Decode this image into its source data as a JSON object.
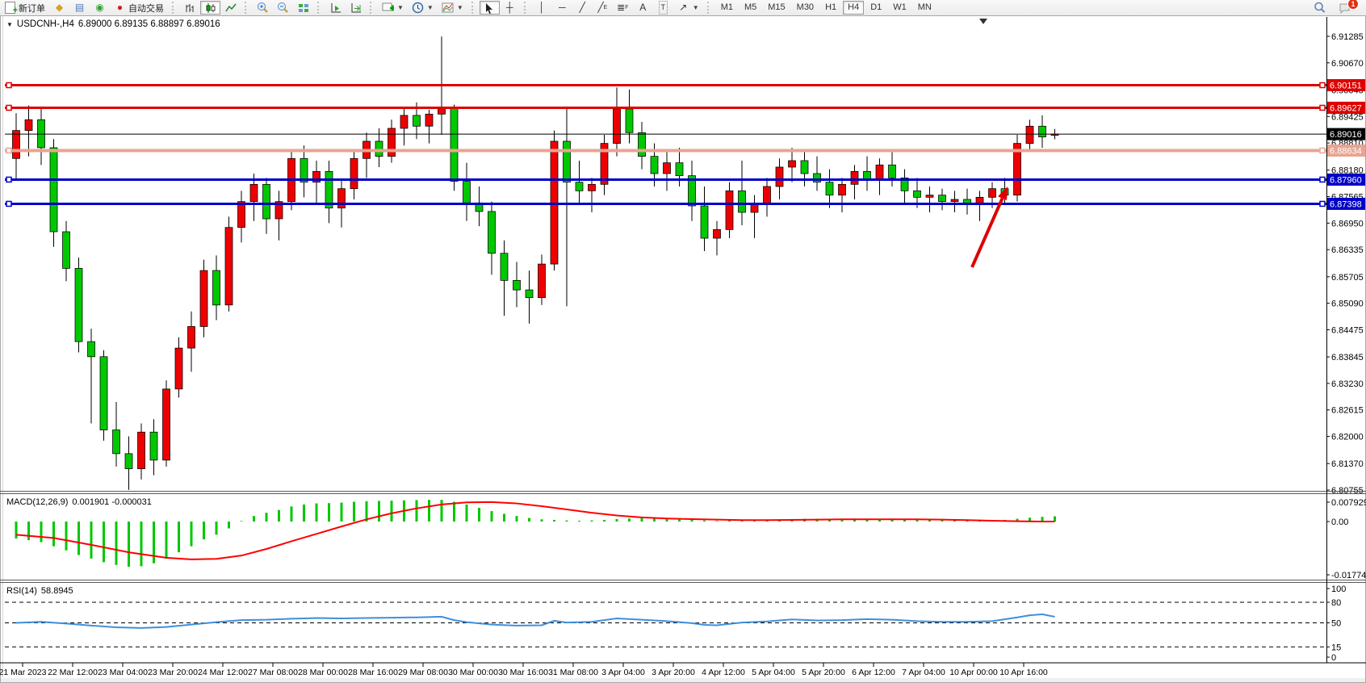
{
  "toolbar": {
    "new_order_label": "新订单",
    "autotrade_label": "自动交易",
    "timeframes": [
      "M1",
      "M5",
      "M15",
      "M30",
      "H1",
      "H4",
      "D1",
      "W1",
      "MN"
    ],
    "active_timeframe": "H4",
    "notification_count": "1"
  },
  "chart": {
    "symbol_period": "USDCNH-,H4",
    "ohlc_text": "6.89000 6.89135 6.88897 6.89016"
  },
  "indicators": {
    "macd": {
      "name": "MACD(12,26,9)",
      "values": "0.001901 -0.000031"
    },
    "rsi": {
      "name": "RSI(14)",
      "value": "58.8945"
    }
  },
  "chart_data": {
    "type": "candlestick",
    "symbol": "USDCNH-",
    "timeframe": "H4",
    "current_ohlc": {
      "open": "6.89000",
      "high": "6.89135",
      "low": "6.88897",
      "close": "6.89016"
    },
    "up_color": "#ee0000",
    "down_color": "#00c800",
    "price_range": [
      6.80755,
      6.91285
    ],
    "price_axis_ticks": [
      6.91285,
      6.9067,
      6.9004,
      6.89425,
      6.8881,
      6.8818,
      6.87565,
      6.8695,
      6.86335,
      6.85705,
      6.8509,
      6.84475,
      6.83845,
      6.8323,
      6.82615,
      6.82,
      6.8137,
      6.80755
    ],
    "horizontal_lines": [
      {
        "price": 6.90151,
        "color": "#dd0000",
        "width": 3,
        "badge": "6.90151"
      },
      {
        "price": 6.89627,
        "color": "#dd0000",
        "width": 3,
        "badge": "6.89627"
      },
      {
        "price": 6.89016,
        "color": "#000000",
        "width": 1,
        "badge": "6.89016"
      },
      {
        "price": 6.88634,
        "color": "#e8a492",
        "width": 4,
        "badge": "6.88634"
      },
      {
        "price": 6.8796,
        "color": "#0000c8",
        "width": 3,
        "badge": "6.87960"
      },
      {
        "price": 6.87398,
        "color": "#0000c8",
        "width": 3,
        "badge": "6.87398"
      }
    ],
    "time_labels": [
      "21 Mar 2023",
      "22 Mar 12:00",
      "23 Mar 04:00",
      "23 Mar 20:00",
      "24 Mar 12:00",
      "27 Mar 08:00",
      "28 Mar 00:00",
      "28 Mar 16:00",
      "29 Mar 08:00",
      "30 Mar 00:00",
      "30 Mar 16:00",
      "31 Mar 08:00",
      "3 Apr 04:00",
      "3 Apr 20:00",
      "4 Apr 12:00",
      "5 Apr 04:00",
      "5 Apr 20:00",
      "6 Apr 12:00",
      "7 Apr 04:00",
      "10 Apr 00:00",
      "10 Apr 16:00"
    ],
    "candles": [
      [
        6.8845,
        6.895,
        6.8795,
        6.891
      ],
      [
        6.891,
        6.8968,
        6.885,
        6.8935
      ],
      [
        6.8935,
        6.896,
        6.883,
        6.887
      ],
      [
        6.887,
        6.889,
        6.864,
        6.8675
      ],
      [
        6.8675,
        6.87,
        6.856,
        6.859
      ],
      [
        6.859,
        6.8615,
        6.8395,
        6.842
      ],
      [
        6.842,
        6.845,
        6.823,
        6.8385
      ],
      [
        6.8385,
        6.84,
        6.819,
        6.8215
      ],
      [
        6.8215,
        6.828,
        6.813,
        6.816
      ],
      [
        6.816,
        6.82,
        6.8076,
        6.8125
      ],
      [
        6.8125,
        6.823,
        6.81,
        6.821
      ],
      [
        6.821,
        6.824,
        6.811,
        6.8145
      ],
      [
        6.8145,
        6.833,
        6.813,
        6.831
      ],
      [
        6.831,
        6.843,
        6.829,
        6.8405
      ],
      [
        6.8405,
        6.849,
        6.835,
        6.8455
      ],
      [
        6.8455,
        6.861,
        6.843,
        6.8585
      ],
      [
        6.8585,
        6.862,
        6.847,
        6.8505
      ],
      [
        6.8505,
        6.871,
        6.849,
        6.8685
      ],
      [
        6.8685,
        6.877,
        6.865,
        6.8745
      ],
      [
        6.8745,
        6.881,
        6.87,
        6.8785
      ],
      [
        6.8785,
        6.88,
        6.867,
        6.8705
      ],
      [
        6.8705,
        6.877,
        6.8655,
        6.8745
      ],
      [
        6.8745,
        6.8865,
        6.8725,
        6.8845
      ],
      [
        6.8845,
        6.8875,
        6.8755,
        6.879
      ],
      [
        6.879,
        6.884,
        6.874,
        6.8815
      ],
      [
        6.8815,
        6.884,
        6.8695,
        6.873
      ],
      [
        6.873,
        6.8795,
        6.8685,
        6.8775
      ],
      [
        6.8775,
        6.8865,
        6.875,
        6.8845
      ],
      [
        6.8845,
        6.8905,
        6.88,
        6.8885
      ],
      [
        6.8885,
        6.8915,
        6.8825,
        6.885
      ],
      [
        6.885,
        6.8935,
        6.8835,
        6.8915
      ],
      [
        6.8915,
        6.8965,
        6.8875,
        6.8945
      ],
      [
        6.8945,
        6.8975,
        6.889,
        6.892
      ],
      [
        6.892,
        6.8958,
        6.888,
        6.8948
      ],
      [
        6.8948,
        6.9128,
        6.89,
        6.8962
      ],
      [
        6.8962,
        6.897,
        6.877,
        6.8792
      ],
      [
        6.8792,
        6.8835,
        6.87,
        6.8742
      ],
      [
        6.8742,
        6.878,
        6.8688,
        6.8722
      ],
      [
        6.8722,
        6.8745,
        6.8575,
        6.8625
      ],
      [
        6.8625,
        6.8655,
        6.848,
        6.8562
      ],
      [
        6.8562,
        6.8605,
        6.85,
        6.854
      ],
      [
        6.854,
        6.8585,
        6.8462,
        6.8522
      ],
      [
        6.8522,
        6.8622,
        6.8505,
        6.86
      ],
      [
        6.86,
        6.891,
        6.8585,
        6.8885
      ],
      [
        6.8885,
        6.8965,
        6.8502,
        6.879
      ],
      [
        6.879,
        6.884,
        6.874,
        6.877
      ],
      [
        6.877,
        6.88,
        6.872,
        6.8785
      ],
      [
        6.8785,
        6.89,
        6.876,
        6.888
      ],
      [
        6.888,
        6.901,
        6.885,
        6.896
      ],
      [
        6.896,
        6.9005,
        6.888,
        6.8905
      ],
      [
        6.8905,
        6.893,
        6.882,
        6.885
      ],
      [
        6.885,
        6.888,
        6.878,
        6.881
      ],
      [
        6.881,
        6.886,
        6.877,
        6.8835
      ],
      [
        6.8835,
        6.887,
        6.878,
        6.8805
      ],
      [
        6.8805,
        6.884,
        6.87,
        6.8735
      ],
      [
        6.8735,
        6.878,
        6.863,
        6.866
      ],
      [
        6.866,
        6.87,
        6.862,
        6.868
      ],
      [
        6.868,
        6.879,
        6.866,
        6.877
      ],
      [
        6.877,
        6.884,
        6.869,
        6.872
      ],
      [
        6.872,
        6.876,
        6.866,
        6.874
      ],
      [
        6.874,
        6.88,
        6.871,
        6.878
      ],
      [
        6.878,
        6.8845,
        6.875,
        6.8825
      ],
      [
        6.8825,
        6.887,
        6.879,
        6.884
      ],
      [
        6.884,
        6.8865,
        6.878,
        6.881
      ],
      [
        6.881,
        6.885,
        6.877,
        6.879
      ],
      [
        6.879,
        6.882,
        6.873,
        6.876
      ],
      [
        6.876,
        6.88,
        6.872,
        6.8785
      ],
      [
        6.8785,
        6.883,
        6.875,
        6.8815
      ],
      [
        6.8815,
        6.885,
        6.877,
        6.8795
      ],
      [
        6.8795,
        6.8845,
        6.876,
        6.883
      ],
      [
        6.883,
        6.886,
        6.878,
        6.88
      ],
      [
        6.88,
        6.882,
        6.874,
        6.877
      ],
      [
        6.877,
        6.88,
        6.873,
        6.8755
      ],
      [
        6.8755,
        6.878,
        6.872,
        6.876
      ],
      [
        6.876,
        6.8775,
        6.8725,
        6.8745
      ],
      [
        6.8745,
        6.877,
        6.872,
        6.875
      ],
      [
        6.875,
        6.8775,
        6.8715,
        6.874
      ],
      [
        6.874,
        6.877,
        6.87,
        6.8755
      ],
      [
        6.8755,
        6.879,
        6.873,
        6.8775
      ],
      [
        6.8775,
        6.88,
        6.874,
        6.876
      ],
      [
        6.876,
        6.89,
        6.8745,
        6.888
      ],
      [
        6.888,
        6.8935,
        6.886,
        6.892
      ],
      [
        6.892,
        6.8945,
        6.887,
        6.8895
      ],
      [
        6.89,
        6.89135,
        6.88897,
        6.89016
      ]
    ],
    "macd": {
      "label": "MACD(12,26,9)",
      "main_value": 0.001901,
      "signal_value": -3.1e-05,
      "axis_labels": [
        "0.007929",
        "0.00",
        "-0.017743"
      ],
      "hist_color": "#00c800",
      "signal_color": "#ff0000",
      "histogram": [
        -0.0062,
        -0.0068,
        -0.0075,
        -0.009,
        -0.0105,
        -0.0122,
        -0.0135,
        -0.0148,
        -0.0158,
        -0.0165,
        -0.0163,
        -0.0152,
        -0.0135,
        -0.0112,
        -0.009,
        -0.0065,
        -0.0048,
        -0.0025,
        0.0002,
        0.002,
        0.0032,
        0.0042,
        0.0055,
        0.0062,
        0.0066,
        0.0067,
        0.0069,
        0.0072,
        0.0074,
        0.0075,
        0.0076,
        0.0077,
        0.0078,
        0.0079,
        0.0079,
        0.0072,
        0.0062,
        0.005,
        0.0038,
        0.0028,
        0.002,
        0.0013,
        0.0008,
        0.0006,
        0.0004,
        0.0003,
        0.0004,
        0.0006,
        0.0009,
        0.0011,
        0.0012,
        0.0011,
        0.001,
        0.0009,
        0.0007,
        0.0004,
        0.0002,
        0.0003,
        0.0004,
        0.0005,
        0.0006,
        0.0008,
        0.0009,
        0.001,
        0.001,
        0.0009,
        0.0008,
        0.0008,
        0.0009,
        0.0009,
        0.0009,
        0.0008,
        0.0007,
        0.0006,
        0.0005,
        0.0004,
        0.0004,
        0.0004,
        0.0005,
        0.0006,
        0.001,
        0.0014,
        0.0017,
        0.0019
      ],
      "signal": [
        [
          0,
          -0.0048
        ],
        [
          3,
          -0.006
        ],
        [
          6,
          -0.0085
        ],
        [
          9,
          -0.0112
        ],
        [
          12,
          -0.0132
        ],
        [
          14,
          -0.0138
        ],
        [
          16,
          -0.0136
        ],
        [
          18,
          -0.0124
        ],
        [
          20,
          -0.01
        ],
        [
          22,
          -0.0072
        ],
        [
          24,
          -0.0045
        ],
        [
          26,
          -0.0018
        ],
        [
          28,
          0.0008
        ],
        [
          30,
          0.003
        ],
        [
          32,
          0.0048
        ],
        [
          34,
          0.0062
        ],
        [
          36,
          0.007
        ],
        [
          38,
          0.0071
        ],
        [
          40,
          0.0066
        ],
        [
          42,
          0.0056
        ],
        [
          44,
          0.0044
        ],
        [
          46,
          0.0032
        ],
        [
          48,
          0.0022
        ],
        [
          50,
          0.0015
        ],
        [
          52,
          0.0011
        ],
        [
          54,
          0.0009
        ],
        [
          56,
          0.0007
        ],
        [
          58,
          0.0005
        ],
        [
          60,
          0.0005
        ],
        [
          62,
          0.0006
        ],
        [
          64,
          0.0007
        ],
        [
          66,
          0.0008
        ],
        [
          68,
          0.0008
        ],
        [
          70,
          0.0008
        ],
        [
          72,
          0.0008
        ],
        [
          74,
          0.0007
        ],
        [
          76,
          0.0005
        ],
        [
          78,
          0.0003
        ],
        [
          80,
          0.0001
        ],
        [
          82,
          0.0
        ],
        [
          83,
          0.0
        ]
      ]
    },
    "rsi": {
      "label": "RSI(14)",
      "last_value": 58.8945,
      "levels": [
        80,
        50,
        15
      ],
      "axis_labels": [
        "100",
        "80",
        "50",
        "15",
        "0"
      ],
      "color": "#3f8fdc",
      "points": [
        [
          0,
          50
        ],
        [
          2,
          51.5
        ],
        [
          4,
          49
        ],
        [
          6,
          46
        ],
        [
          8,
          43.5
        ],
        [
          10,
          42.5
        ],
        [
          12,
          44
        ],
        [
          14,
          47.5
        ],
        [
          16,
          51
        ],
        [
          18,
          54
        ],
        [
          20,
          54.5
        ],
        [
          22,
          56
        ],
        [
          24,
          57
        ],
        [
          26,
          56.5
        ],
        [
          28,
          57
        ],
        [
          30,
          57.5
        ],
        [
          32,
          58
        ],
        [
          34,
          59
        ],
        [
          35,
          54
        ],
        [
          36,
          51
        ],
        [
          38,
          47.5
        ],
        [
          40,
          46
        ],
        [
          42,
          46.5
        ],
        [
          43,
          53
        ],
        [
          44,
          50.5
        ],
        [
          46,
          51.5
        ],
        [
          48,
          56.5
        ],
        [
          50,
          54.5
        ],
        [
          52,
          52.5
        ],
        [
          54,
          49.5
        ],
        [
          55,
          47
        ],
        [
          56,
          46.5
        ],
        [
          58,
          50.5
        ],
        [
          60,
          52
        ],
        [
          62,
          55
        ],
        [
          64,
          53.5
        ],
        [
          66,
          54
        ],
        [
          68,
          55.5
        ],
        [
          70,
          54.5
        ],
        [
          72,
          52.5
        ],
        [
          74,
          51.5
        ],
        [
          76,
          51.5
        ],
        [
          78,
          52.5
        ],
        [
          80,
          58
        ],
        [
          81,
          61
        ],
        [
          82,
          62.5
        ],
        [
          83,
          58.9
        ]
      ]
    },
    "annotation_arrow": {
      "color": "#dd0000",
      "tip": [
        1248,
        212
      ],
      "tail": [
        1204,
        312
      ]
    }
  }
}
